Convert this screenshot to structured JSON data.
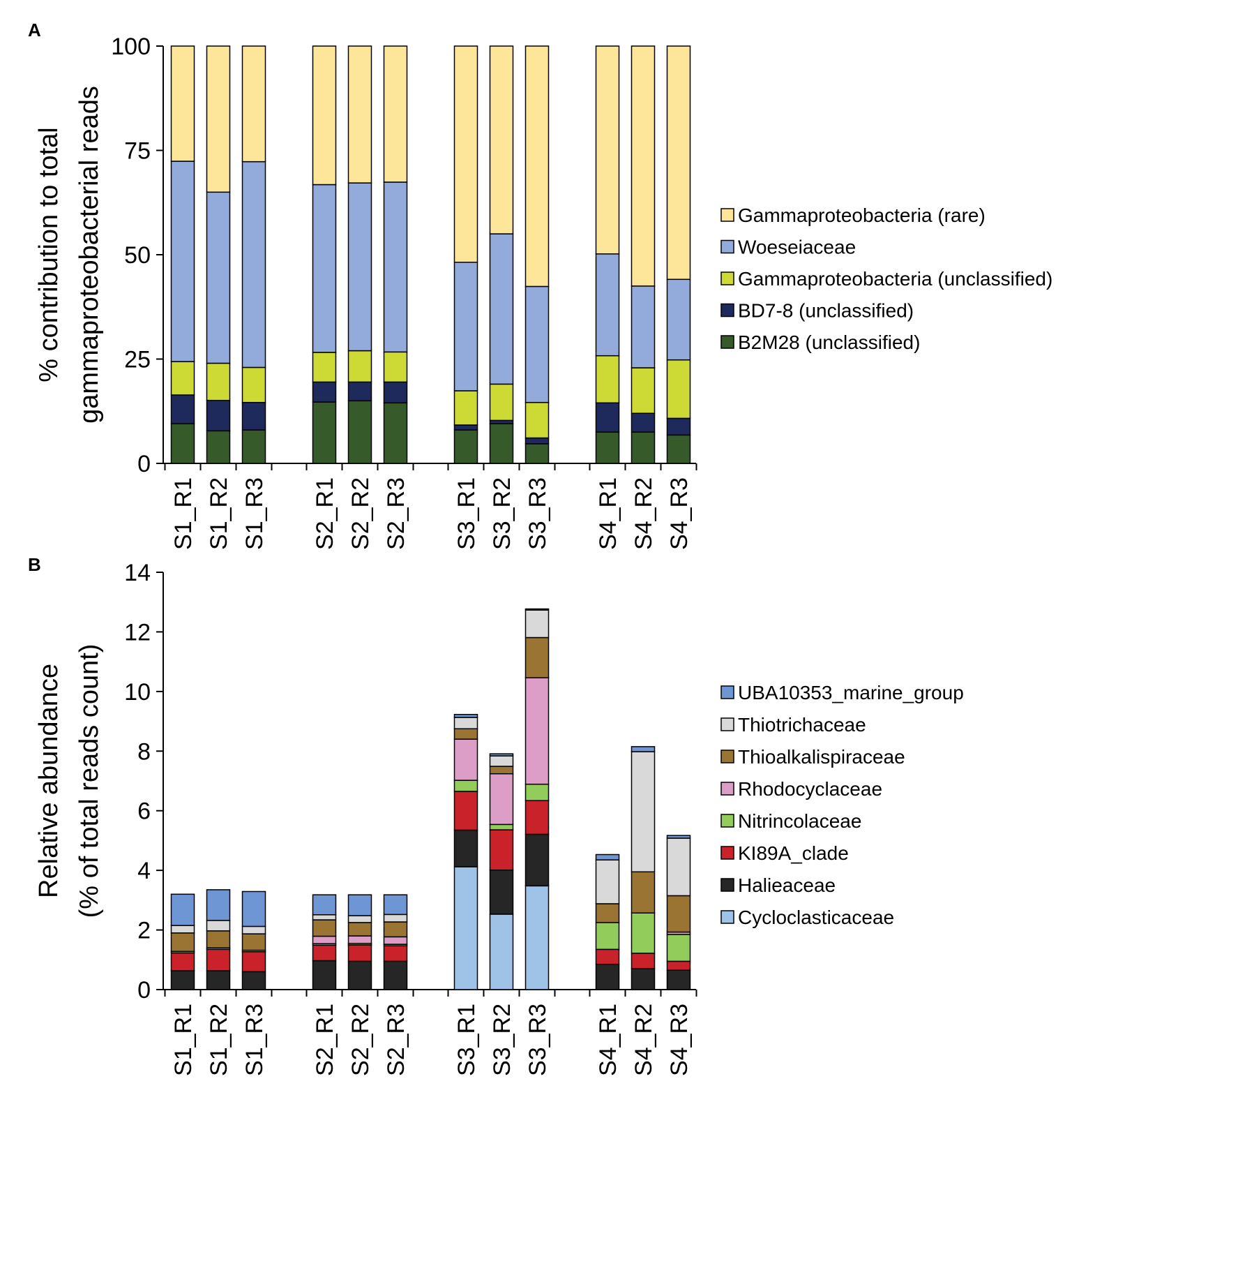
{
  "chart_data": [
    {
      "panel": "A",
      "type": "bar",
      "stacked": true,
      "ylabel_lines": [
        "% contribution to total",
        "gammaproteobacterial reads"
      ],
      "xlabel": "",
      "ylim": [
        0,
        100
      ],
      "yticks": [
        0,
        25,
        50,
        75,
        100
      ],
      "categories": [
        "S1_R1",
        "S1_R2",
        "S1_R3",
        "S2_R1",
        "S2_R2",
        "S2_R3",
        "S3_R1",
        "S3_R2",
        "S3_R3",
        "S4_R1",
        "S4_R2",
        "S4_R3"
      ],
      "series": [
        {
          "name": "B2M28 (unclassified)",
          "color": "#375a2a",
          "values": [
            9.5,
            7.8,
            8.0,
            14.7,
            15.0,
            14.5,
            8.0,
            9.5,
            4.7,
            7.5,
            7.5,
            6.8
          ]
        },
        {
          "name": "BD7-8 (unclassified)",
          "color": "#1f2a5c",
          "values": [
            6.9,
            7.3,
            6.6,
            4.8,
            4.5,
            5.0,
            1.2,
            0.8,
            1.4,
            7.0,
            4.5,
            4.0
          ]
        },
        {
          "name": "Gammaproteobacteria (unclassified)",
          "color": "#cdd934",
          "values": [
            8.0,
            8.9,
            8.4,
            7.1,
            7.5,
            7.2,
            8.2,
            8.7,
            8.5,
            11.3,
            10.9,
            14.0
          ]
        },
        {
          "name": "Woeseiaceae",
          "color": "#93abdb",
          "values": [
            48.0,
            41.0,
            49.3,
            40.2,
            40.2,
            40.7,
            30.8,
            36.0,
            27.8,
            24.4,
            19.6,
            19.3
          ]
        },
        {
          "name": "Gammaproteobacteria (rare)",
          "color": "#fde699",
          "values": [
            27.6,
            35.0,
            27.7,
            33.2,
            32.8,
            32.6,
            51.8,
            45.0,
            57.6,
            49.8,
            57.5,
            55.9
          ]
        }
      ],
      "legend": [
        "Gammaproteobacteria (rare)",
        "Woeseiaceae",
        "Gammaproteobacteria (unclassified)",
        "BD7-8 (unclassified)",
        "B2M28 (unclassified)"
      ],
      "legend_position": "right"
    },
    {
      "panel": "B",
      "type": "bar",
      "stacked": true,
      "ylabel_lines": [
        "Relative abundance",
        "(% of total reads count)"
      ],
      "xlabel": "",
      "ylim": [
        0,
        14
      ],
      "yticks": [
        0,
        2,
        4,
        6,
        8,
        10,
        12,
        14
      ],
      "categories": [
        "S1_R1",
        "S1_R2",
        "S1_R3",
        "S2_R1",
        "S2_R2",
        "S2_R3",
        "S3_R1",
        "S3_R2",
        "S3_R3",
        "S4_R1",
        "S4_R2",
        "S4_R3"
      ],
      "series": [
        {
          "name": "Cycloclasticaceae",
          "color": "#9fc3e7",
          "values": [
            0,
            0,
            0,
            0,
            0,
            0,
            4.12,
            2.53,
            3.48,
            0,
            0,
            0
          ]
        },
        {
          "name": "Halieaceae",
          "color": "#262626",
          "values": [
            0.63,
            0.63,
            0.6,
            0.97,
            0.95,
            0.95,
            1.23,
            1.48,
            1.73,
            0.85,
            0.7,
            0.65
          ]
        },
        {
          "name": "KI89A_clade",
          "color": "#c9222a",
          "values": [
            0.6,
            0.72,
            0.67,
            0.52,
            0.55,
            0.52,
            1.3,
            1.35,
            1.13,
            0.5,
            0.52,
            0.3
          ]
        },
        {
          "name": "Nitrincolaceae",
          "color": "#92cc5b",
          "values": [
            0.05,
            0.05,
            0.05,
            0.05,
            0.05,
            0.05,
            0.37,
            0.18,
            0.55,
            0.9,
            1.35,
            0.9
          ]
        },
        {
          "name": "Rhodocyclaceae",
          "color": "#dc9ec6",
          "values": [
            0,
            0,
            0,
            0.25,
            0.25,
            0.25,
            1.38,
            1.7,
            3.57,
            0,
            0,
            0.08
          ]
        },
        {
          "name": "Thioalkalispiraceae",
          "color": "#9a7432",
          "values": [
            0.62,
            0.57,
            0.55,
            0.55,
            0.45,
            0.5,
            0.35,
            0.25,
            1.35,
            0.63,
            1.38,
            1.22
          ]
        },
        {
          "name": "Thiotrichaceae",
          "color": "#d9d9d9",
          "values": [
            0.25,
            0.35,
            0.25,
            0.17,
            0.23,
            0.25,
            0.38,
            0.35,
            0.92,
            1.47,
            4.03,
            1.93
          ]
        },
        {
          "name": "UBA10353_marine_group",
          "color": "#6f96d4",
          "values": [
            1.05,
            1.03,
            1.17,
            0.67,
            0.7,
            0.66,
            0.1,
            0.07,
            0.04,
            0.18,
            0.17,
            0.09
          ]
        }
      ],
      "legend": [
        "UBA10353_marine_group",
        "Thiotrichaceae",
        "Thioalkalispiraceae",
        "Rhodocyclaceae",
        "Nitrincolaceae",
        "KI89A_clade",
        "Halieaceae",
        "Cycloclasticaceae"
      ],
      "legend_position": "right"
    }
  ]
}
